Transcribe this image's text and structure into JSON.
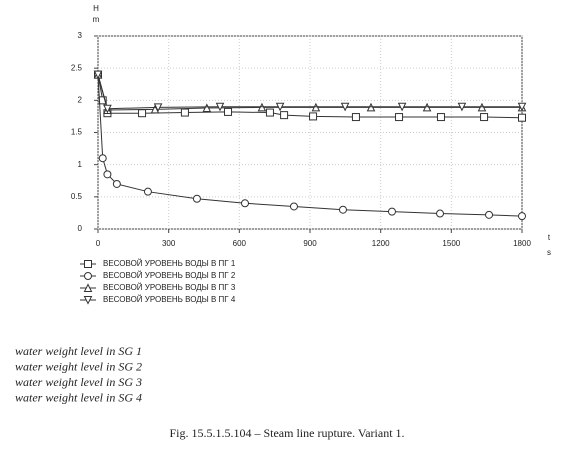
{
  "chart_data": {
    "type": "line",
    "y_label": "H",
    "y_unit": "m",
    "x_label": "t",
    "x_unit": "s",
    "xlim": [
      0,
      1800
    ],
    "xticks": [
      0,
      300,
      600,
      900,
      1200,
      1500,
      1800
    ],
    "ylim": [
      0,
      3
    ],
    "yticks": [
      0,
      0.5,
      1,
      1.5,
      2,
      2.5,
      3
    ],
    "grid": true,
    "series": [
      {
        "name": "ВЕСОВОЙ УРОВЕНЬ ВОДЫ В ПГ 1",
        "color": "#333333",
        "marker": "square",
        "x": [
          0,
          20,
          40,
          187,
          369,
          552,
          730,
          790,
          913,
          1095,
          1278,
          1456,
          1639,
          1800
        ],
        "values": [
          2.4,
          2.0,
          1.8,
          1.8,
          1.81,
          1.82,
          1.81,
          1.77,
          1.75,
          1.74,
          1.74,
          1.74,
          1.74,
          1.73
        ]
      },
      {
        "name": "ВЕСОВОЙ УРОВЕНЬ ВОДЫ В ПГ 2",
        "color": "#333333",
        "marker": "circle",
        "x": [
          0,
          20,
          40,
          80,
          212,
          420,
          624,
          832,
          1040,
          1248,
          1452,
          1660,
          1800
        ],
        "values": [
          2.4,
          1.1,
          0.85,
          0.7,
          0.58,
          0.47,
          0.4,
          0.35,
          0.3,
          0.27,
          0.24,
          0.22,
          0.2
        ]
      },
      {
        "name": "ВЕСОВОЙ УРОВЕНЬ ВОДЫ В ПГ 3",
        "color": "#333333",
        "marker": "triangle",
        "x": [
          0,
          40,
          242,
          462,
          696,
          925,
          1159,
          1397,
          1630,
          1800
        ],
        "values": [
          2.4,
          1.85,
          1.86,
          1.88,
          1.89,
          1.89,
          1.89,
          1.89,
          1.89,
          1.89
        ]
      },
      {
        "name": "ВЕСОВОЙ УРОВЕНЬ ВОДЫ В ПГ 4",
        "color": "#333333",
        "marker": "triangle-down",
        "x": [
          0,
          40,
          255,
          518,
          773,
          1049,
          1291,
          1545,
          1800
        ],
        "values": [
          2.4,
          1.87,
          1.89,
          1.9,
          1.9,
          1.9,
          1.9,
          1.9,
          1.9
        ]
      }
    ]
  },
  "notes": [
    "water weight level in SG 1",
    "water weight level in SG 2",
    "water weight level in SG 3",
    "water weight level in SG 4"
  ],
  "caption": "Fig. 15.5.1.5.104 – Steam line rupture. Variant 1."
}
